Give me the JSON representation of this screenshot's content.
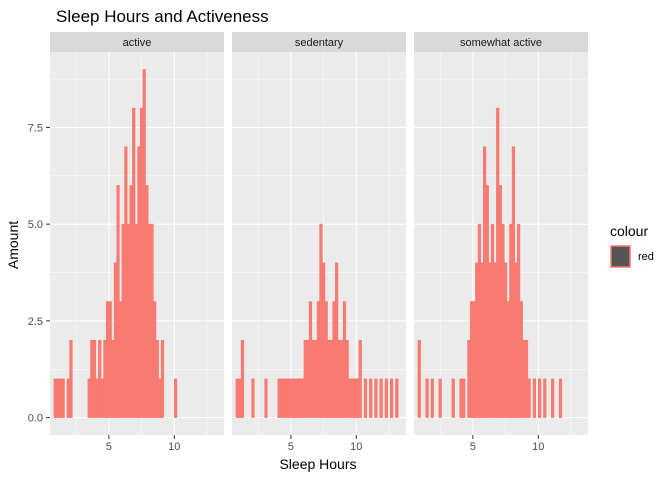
{
  "chart_data": {
    "type": "bar",
    "title": "Sleep Hours and Activeness",
    "xlabel": "Sleep Hours",
    "ylabel": "Amount",
    "xlim": [
      0.5,
      13.8
    ],
    "ylim": [
      -0.45,
      9.45
    ],
    "x_ticks": [
      5,
      10
    ],
    "x_tick_labels": [
      "5",
      "10"
    ],
    "y_ticks": [
      0,
      2.5,
      5,
      7.5
    ],
    "y_tick_labels": [
      "0.0",
      "2.5",
      "5.0",
      "7.5"
    ],
    "bin_width": 0.2,
    "grid": true,
    "legend": {
      "title": "colour",
      "position": "right",
      "entries": [
        {
          "label": "red",
          "fill": "#F8766D",
          "swatch": "#555555"
        }
      ]
    },
    "colors": {
      "bar_fill": "#F8766D",
      "panel_bg": "#EBEBEB",
      "strip_bg": "#D9D9D9",
      "grid": "#FFFFFF"
    },
    "panels": [
      {
        "label": "active",
        "x": [
          0.9,
          1.1,
          1.3,
          1.5,
          1.9,
          2.1,
          3.5,
          3.7,
          3.9,
          4.1,
          4.3,
          4.5,
          4.7,
          4.9,
          5.1,
          5.3,
          5.5,
          5.7,
          5.9,
          6.1,
          6.3,
          6.5,
          6.7,
          6.9,
          7.1,
          7.3,
          7.5,
          7.7,
          7.9,
          8.1,
          8.3,
          8.5,
          8.7,
          8.9,
          9.1,
          10.1
        ],
        "values": [
          1,
          1,
          1,
          1,
          1,
          2,
          1,
          2,
          2,
          1,
          2,
          1,
          2,
          3,
          3,
          2,
          4,
          6,
          3,
          5,
          7,
          5,
          6,
          8,
          5,
          7,
          8,
          9,
          6,
          5,
          5,
          3,
          2,
          1,
          2,
          1
        ]
      },
      {
        "label": "sedentary",
        "x": [
          0.9,
          1.1,
          1.3,
          2.1,
          3.1,
          4.1,
          4.3,
          4.5,
          4.7,
          4.9,
          5.1,
          5.3,
          5.5,
          5.7,
          5.9,
          6.1,
          6.3,
          6.5,
          6.7,
          6.9,
          7.1,
          7.3,
          7.5,
          7.7,
          7.9,
          8.1,
          8.3,
          8.5,
          8.7,
          8.9,
          9.1,
          9.3,
          9.5,
          9.7,
          9.9,
          10.1,
          10.3,
          10.7,
          11.1,
          11.5,
          11.9,
          12.3,
          12.7,
          13.1
        ],
        "values": [
          1,
          1,
          2,
          1,
          1,
          1,
          1,
          1,
          1,
          1,
          1,
          1,
          1,
          1,
          1,
          2,
          2,
          3,
          2,
          2,
          3,
          5,
          4,
          3,
          2,
          2,
          3,
          4,
          2,
          2,
          3,
          2,
          1,
          1,
          1,
          1,
          2,
          1,
          1,
          1,
          1,
          1,
          1,
          1
        ]
      },
      {
        "label": "somewhat active",
        "x": [
          0.9,
          1.5,
          1.9,
          2.5,
          3.5,
          4.1,
          4.3,
          4.7,
          4.9,
          5.1,
          5.3,
          5.5,
          5.7,
          5.9,
          6.1,
          6.3,
          6.5,
          6.7,
          6.9,
          7.1,
          7.3,
          7.5,
          7.7,
          7.9,
          8.1,
          8.3,
          8.5,
          8.7,
          8.9,
          9.1,
          9.3,
          9.7,
          10.1,
          10.5,
          11.1,
          11.7
        ],
        "values": [
          2,
          1,
          1,
          1,
          1,
          1,
          1,
          2,
          3,
          3,
          4,
          5,
          4,
          7,
          6,
          4,
          5,
          4,
          8,
          6,
          5,
          4,
          3,
          5,
          7,
          4,
          5,
          3,
          2,
          2,
          1,
          1,
          1,
          1,
          1,
          1
        ]
      }
    ]
  }
}
